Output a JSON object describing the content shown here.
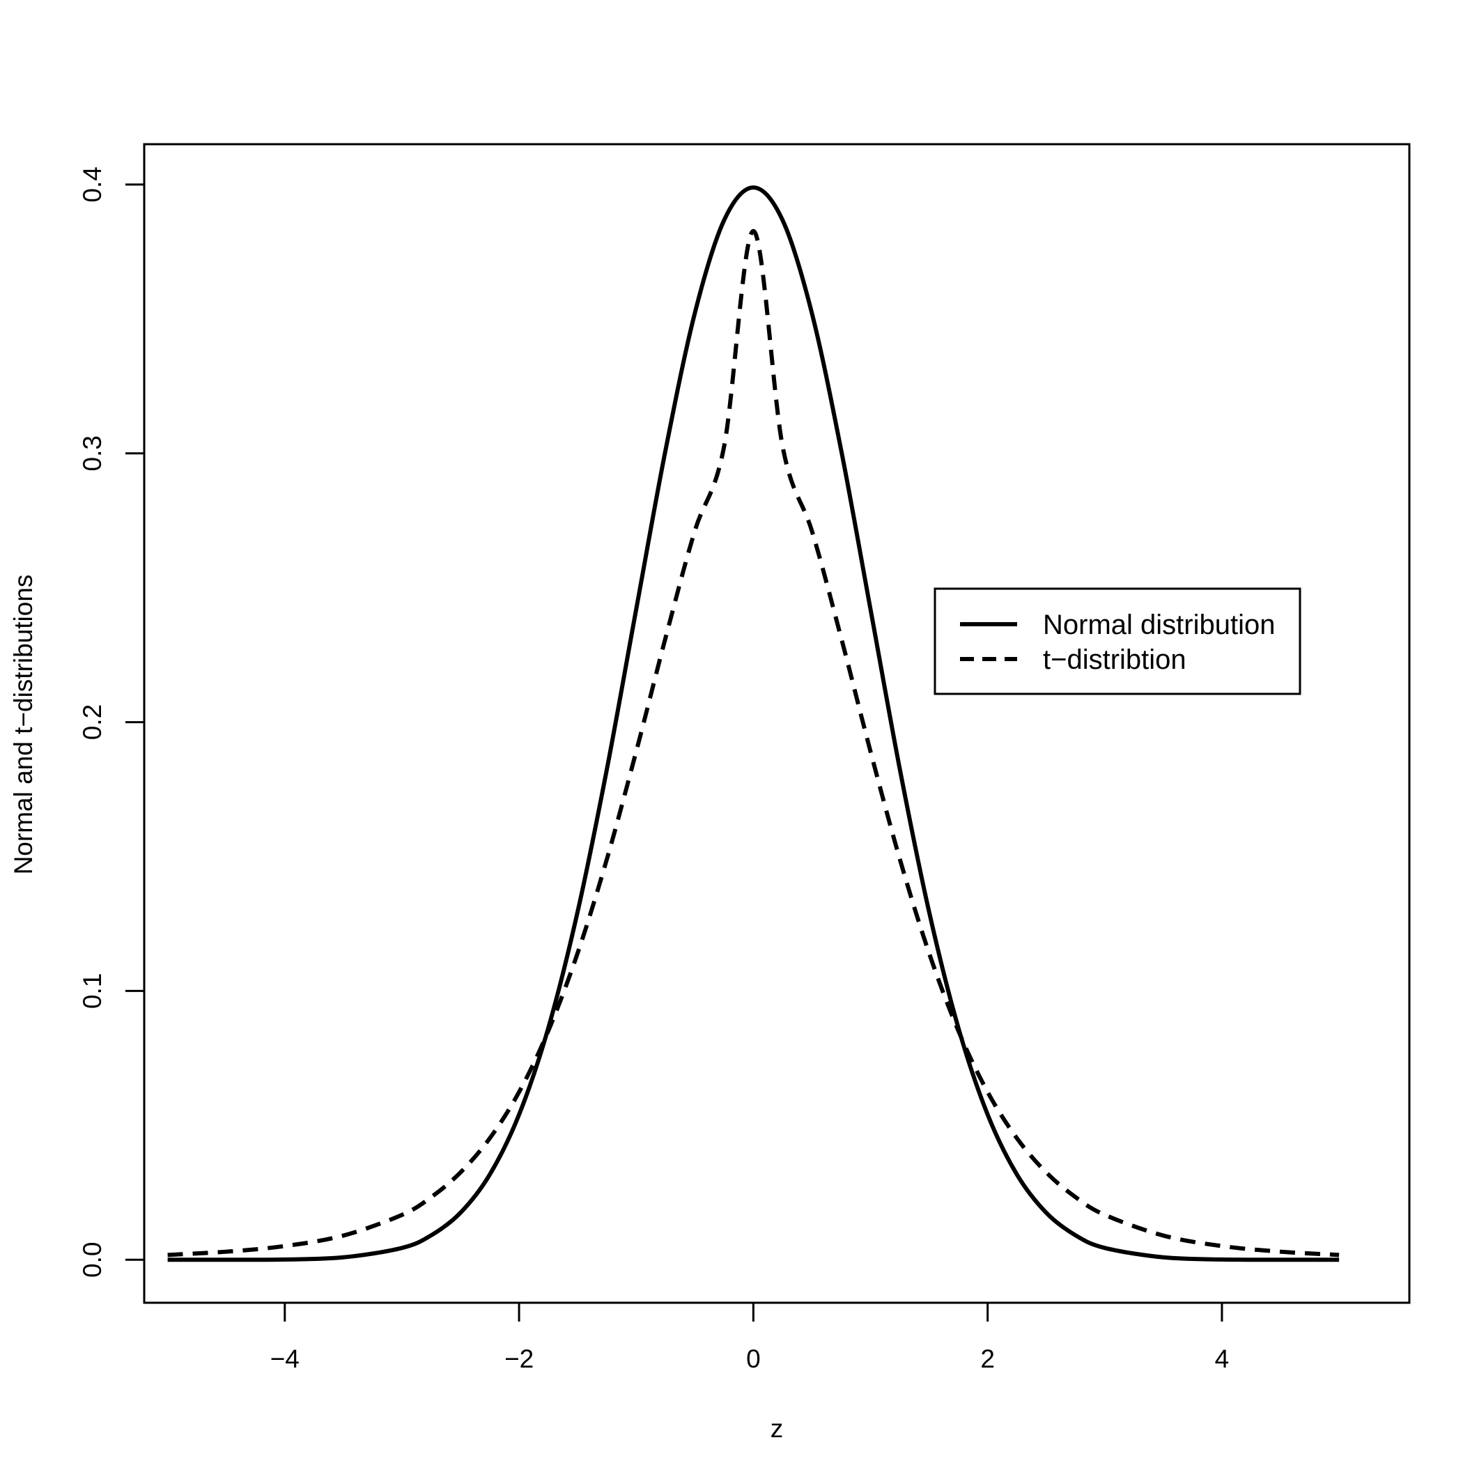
{
  "chart_data": {
    "type": "line",
    "title": "",
    "xlabel": "z",
    "ylabel": "Normal and t−distributions",
    "xlim": [
      -5.2,
      5.6
    ],
    "ylim": [
      -0.016,
      0.415
    ],
    "x_ticks": [
      {
        "value": -4,
        "label": "−4"
      },
      {
        "value": -2,
        "label": "−2"
      },
      {
        "value": 0,
        "label": "0"
      },
      {
        "value": 2,
        "label": "2"
      },
      {
        "value": 4,
        "label": "4"
      }
    ],
    "y_ticks": [
      {
        "value": 0.0,
        "label": "0.0"
      },
      {
        "value": 0.1,
        "label": "0.1"
      },
      {
        "value": 0.2,
        "label": "0.2"
      },
      {
        "value": 0.3,
        "label": "0.3"
      },
      {
        "value": 0.4,
        "label": "0.4"
      }
    ],
    "grid": false,
    "legend_position": "right",
    "series": [
      {
        "name": "Normal distribution",
        "style": "solid",
        "color": "#000000",
        "x": [
          -5,
          -4.5,
          -4,
          -3.5,
          -3,
          -2.75,
          -2.5,
          -2.25,
          -2,
          -1.75,
          -1.5,
          -1.25,
          -1,
          -0.75,
          -0.5,
          -0.25,
          0,
          0.25,
          0.5,
          0.75,
          1,
          1.25,
          1.5,
          1.75,
          2,
          2.25,
          2.5,
          2.75,
          3,
          3.5,
          4,
          4.5,
          5
        ],
        "y": [
          0.0,
          0.0,
          0.0001,
          0.0009,
          0.0044,
          0.0091,
          0.0175,
          0.0317,
          0.054,
          0.0863,
          0.1295,
          0.1826,
          0.242,
          0.3011,
          0.3521,
          0.3867,
          0.3989,
          0.3867,
          0.3521,
          0.3011,
          0.242,
          0.1826,
          0.1295,
          0.0863,
          0.054,
          0.0317,
          0.0175,
          0.0091,
          0.0044,
          0.0009,
          0.0001,
          0.0,
          0.0
        ]
      },
      {
        "name": "t−distribtion",
        "style": "dashed",
        "color": "#000000",
        "x": [
          -5,
          -4.5,
          -4,
          -3.5,
          -3,
          -2.75,
          -2.5,
          -2.25,
          -2,
          -1.75,
          -1.5,
          -1.25,
          -1,
          -0.75,
          -0.5,
          -0.25,
          0,
          0.25,
          0.5,
          0.75,
          1,
          1.25,
          1.5,
          1.75,
          2,
          2.25,
          2.5,
          2.75,
          3,
          3.5,
          4,
          4.5,
          5
        ],
        "y": [
          0.0018,
          0.003,
          0.0051,
          0.009,
          0.0167,
          0.0233,
          0.0325,
          0.0452,
          0.0624,
          0.0852,
          0.1141,
          0.1491,
          0.1891,
          0.2313,
          0.2711,
          0.3025,
          0.3827,
          0.3025,
          0.2711,
          0.2313,
          0.1891,
          0.1491,
          0.1141,
          0.0852,
          0.0624,
          0.0452,
          0.0325,
          0.0233,
          0.0167,
          0.009,
          0.0051,
          0.003,
          0.0018
        ]
      }
    ]
  }
}
